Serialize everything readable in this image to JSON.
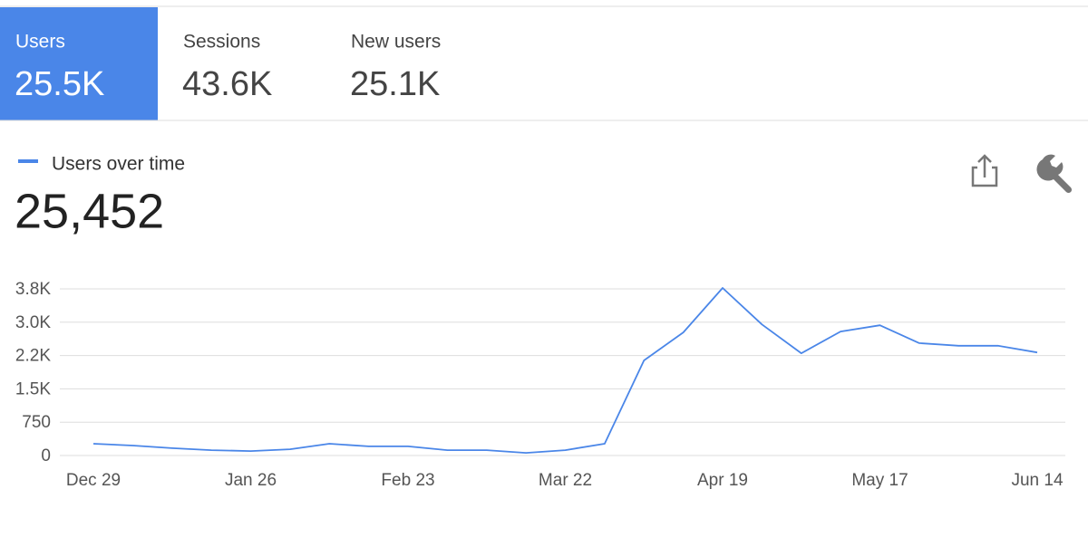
{
  "tabs": [
    {
      "label": "Users",
      "value": "25.5K"
    },
    {
      "label": "Sessions",
      "value": "43.6K"
    },
    {
      "label": "New users",
      "value": "25.1K"
    }
  ],
  "total": "25,452",
  "chart_data": {
    "type": "line",
    "categories": [
      "Dec 29",
      null,
      null,
      null,
      "Jan 26",
      null,
      null,
      null,
      "Feb 23",
      null,
      null,
      null,
      "Mar 22",
      null,
      null,
      null,
      "Apr 19",
      null,
      null,
      null,
      "May 17",
      null,
      null,
      null,
      "Jun 14"
    ],
    "series": [
      {
        "name": "Users over time",
        "color": "#4a86e8",
        "values": [
          265,
          225,
          165,
          120,
          100,
          140,
          265,
          205,
          205,
          120,
          120,
          60,
          120,
          265,
          2140,
          2770,
          3770,
          2950,
          2300,
          2790,
          2930,
          2530,
          2470,
          2470,
          2320
        ]
      }
    ],
    "ylim": [
      0,
      3750
    ],
    "yticks": [
      0,
      750,
      {
        "value": 1500,
        "label": "1.5K"
      },
      {
        "value": 2250,
        "label": "2.2K"
      },
      {
        "value": 3000,
        "label": "3.0K"
      },
      {
        "value": 3750,
        "label": "3.8K"
      }
    ],
    "grid": true
  }
}
